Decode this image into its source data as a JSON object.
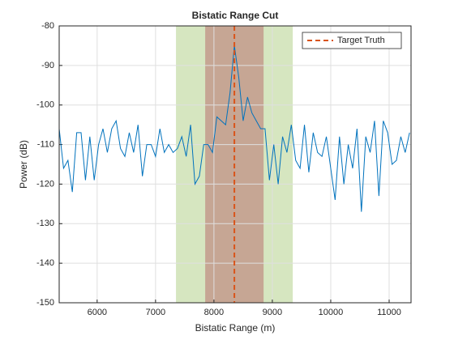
{
  "chart_data": {
    "type": "line",
    "title": "Bistatic Range Cut",
    "x_label": "Bistatic Range (m)",
    "y_label": "Power (dB)",
    "x": [
      5350,
      5425,
      5500,
      5575,
      5650,
      5725,
      5800,
      5875,
      5950,
      6025,
      6100,
      6175,
      6250,
      6325,
      6400,
      6475,
      6550,
      6625,
      6700,
      6775,
      6850,
      6925,
      7000,
      7075,
      7150,
      7225,
      7300,
      7375,
      7450,
      7525,
      7600,
      7675,
      7750,
      7825,
      7900,
      7975,
      8050,
      8125,
      8200,
      8275,
      8350,
      8425,
      8500,
      8575,
      8650,
      8725,
      8800,
      8875,
      8950,
      9025,
      9100,
      9175,
      9250,
      9325,
      9400,
      9475,
      9550,
      9625,
      9700,
      9775,
      9850,
      9925,
      10000,
      10075,
      10150,
      10225,
      10300,
      10375,
      10450,
      10525,
      10600,
      10675,
      10750,
      10825,
      10900,
      10975,
      11050,
      11125,
      11200,
      11275,
      11350
    ],
    "series": [
      {
        "color": "#0072BD",
        "values": [
          -106,
          -116,
          -114,
          -122,
          -107,
          -107,
          -119,
          -108,
          -119,
          -110,
          -106,
          -112,
          -106,
          -104,
          -111,
          -113,
          -107,
          -112,
          -105,
          -118,
          -110,
          -110,
          -113,
          -106,
          -112,
          -110,
          -112,
          -111,
          -108,
          -113,
          -105,
          -120,
          -118,
          -110,
          -110,
          -112,
          -103,
          -104,
          -105,
          -97,
          -85,
          -93,
          -104,
          -98,
          -102,
          -104,
          -106,
          -106,
          -119,
          -110,
          -120,
          -108,
          -112,
          -105,
          -114,
          -116,
          -105,
          -117,
          -107,
          -112,
          -113,
          -108,
          -116,
          -124,
          -108,
          -120,
          -110,
          -116,
          -106,
          -127,
          -108,
          -112,
          -104,
          -123,
          -104,
          -107,
          -115,
          -114,
          -108,
          -112,
          -107
        ]
      },
      {
        "name": "Target Truth",
        "color": "#D95319",
        "x": 8350,
        "dashed": true
      }
    ],
    "regions": [
      {
        "range": [
          7350,
          9350
        ],
        "color": "#77AC30"
      },
      {
        "range": [
          7850,
          8850
        ],
        "color": "#A2142F"
      }
    ],
    "xlim": [
      5350,
      11375
    ],
    "ylim": [
      -150,
      -80
    ],
    "xticks": [
      6000,
      7000,
      8000,
      9000,
      10000,
      11000
    ],
    "yticks": [
      -150,
      -140,
      -130,
      -120,
      -110,
      -100,
      -90,
      -80
    ],
    "grid": true,
    "legend": "top-right"
  }
}
